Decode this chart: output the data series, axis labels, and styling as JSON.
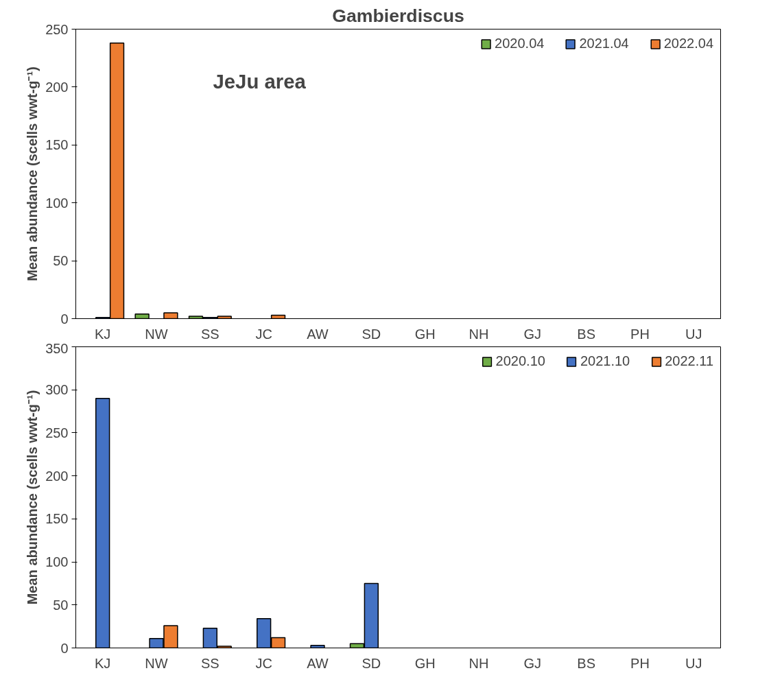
{
  "chart_data": [
    {
      "type": "bar",
      "title": "Gambierdiscus",
      "ylabel": "Mean abundance (scells wwt-g⁻¹)",
      "annotations": [
        "JeJu area"
      ],
      "categories": [
        "KJ",
        "NW",
        "SS",
        "JC",
        "AW",
        "SD",
        "GH",
        "NH",
        "GJ",
        "BS",
        "PH",
        "UJ"
      ],
      "series": [
        {
          "name": "2020.04",
          "color": "#70ad47",
          "values": [
            null,
            4,
            2,
            null,
            null,
            null,
            null,
            null,
            null,
            null,
            null,
            null
          ]
        },
        {
          "name": "2021.04",
          "color": "#4472c4",
          "values": [
            1,
            null,
            1,
            null,
            null,
            null,
            null,
            null,
            null,
            null,
            null,
            null
          ]
        },
        {
          "name": "2022.04",
          "color": "#ed7d31",
          "values": [
            238,
            5,
            2,
            3,
            null,
            null,
            null,
            null,
            null,
            null,
            null,
            null
          ]
        }
      ],
      "ylim": [
        0,
        250
      ],
      "yticks": [
        0,
        50,
        100,
        150,
        200,
        250
      ],
      "grid": false,
      "legend": "top right"
    },
    {
      "type": "bar",
      "ylabel": "Mean abundance (scells wwt-g⁻¹)",
      "categories": [
        "KJ",
        "NW",
        "SS",
        "JC",
        "AW",
        "SD",
        "GH",
        "NH",
        "GJ",
        "BS",
        "PH",
        "UJ"
      ],
      "series": [
        {
          "name": "2020.10",
          "color": "#70ad47",
          "values": [
            null,
            null,
            null,
            null,
            null,
            5,
            null,
            null,
            null,
            null,
            null,
            null
          ]
        },
        {
          "name": "2021.10",
          "color": "#4472c4",
          "values": [
            290,
            11,
            23,
            34,
            3,
            75,
            null,
            null,
            null,
            null,
            null,
            null
          ]
        },
        {
          "name": "2022.11",
          "color": "#ed7d31",
          "values": [
            null,
            26,
            2,
            12,
            null,
            null,
            null,
            null,
            null,
            null,
            null,
            null
          ]
        }
      ],
      "ylim": [
        0,
        350
      ],
      "yticks": [
        0,
        50,
        100,
        150,
        200,
        250,
        300,
        350
      ],
      "grid": false,
      "legend": "top right"
    }
  ]
}
